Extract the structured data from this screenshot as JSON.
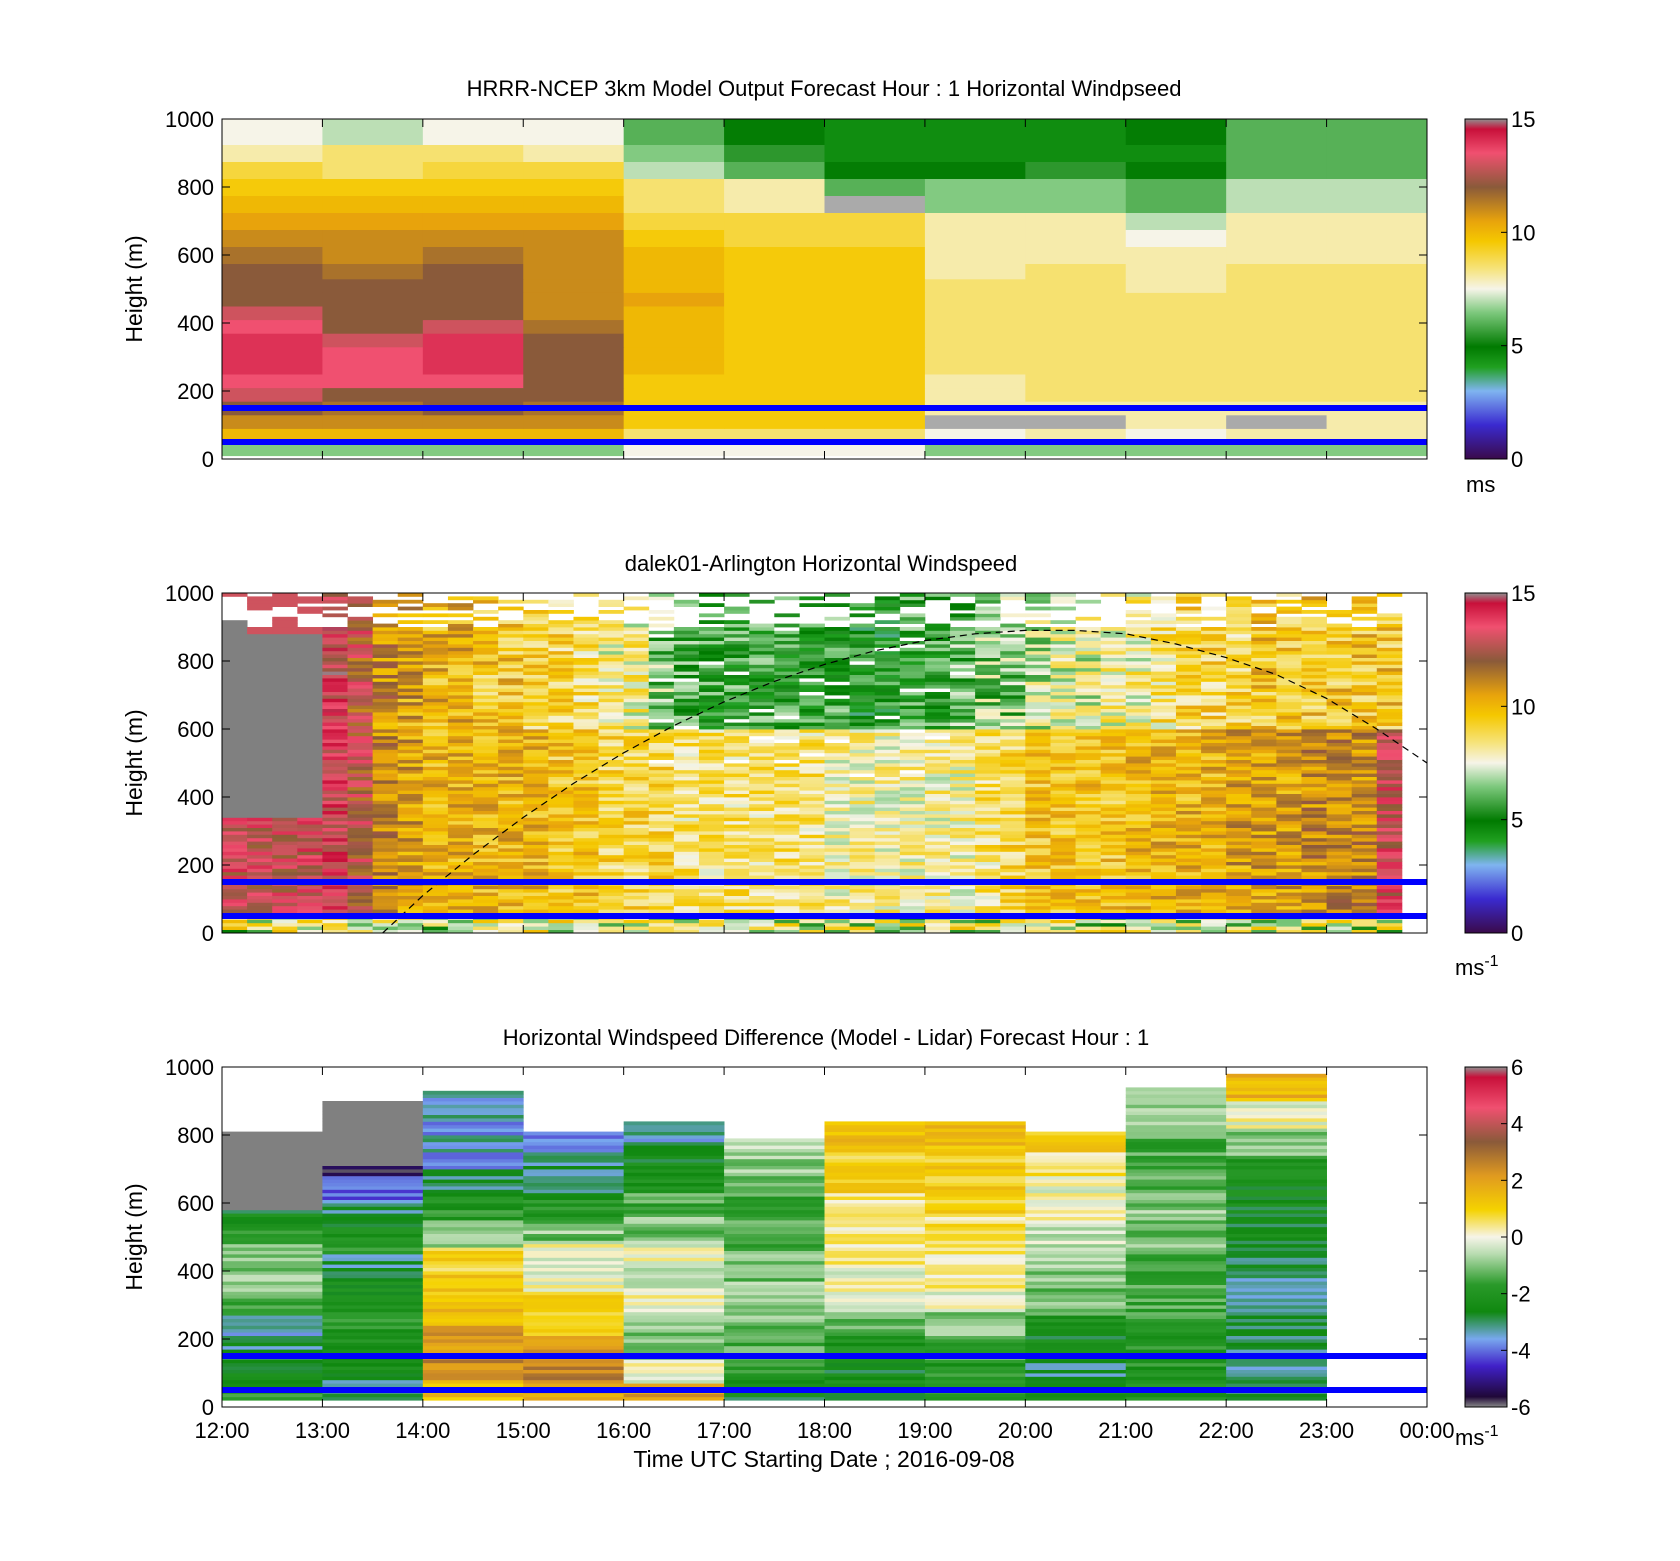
{
  "figure": {
    "xlabel": "Time UTC  Starting Date ; 2016-09-08",
    "x_ticks": [
      "12:00",
      "13:00",
      "14:00",
      "15:00",
      "16:00",
      "17:00",
      "18:00",
      "19:00",
      "20:00",
      "21:00",
      "22:00",
      "23:00",
      "00:00"
    ],
    "y_ticks": [
      "0",
      "200",
      "400",
      "600",
      "800",
      "1000"
    ],
    "ylabel": "Height (m)",
    "reference_heights_m": [
      50,
      150
    ],
    "reference_line_color": "#0000ff"
  },
  "chart_data": [
    {
      "type": "heatmap",
      "title": "HRRR-NCEP 3km Model Output   Forecast Hour : 1 Horizontal Windpseed",
      "ylabel": "Height (m)",
      "xlim": [
        12,
        24
      ],
      "ylim": [
        0,
        1000
      ],
      "colorbar": {
        "range": [
          0,
          15
        ],
        "ticks": [
          "15",
          "10",
          "5",
          "0"
        ],
        "unit": "ms"
      },
      "time_hours": [
        12,
        13,
        14,
        15,
        16,
        17,
        18,
        19,
        20,
        21,
        22,
        23
      ],
      "heights_m": [
        30,
        70,
        110,
        150,
        190,
        230,
        270,
        310,
        350,
        390,
        430,
        470,
        510,
        550,
        600,
        650,
        700,
        750,
        800,
        850,
        900,
        950,
        1000
      ],
      "windspeed_ms": [
        [
          6.5,
          6.5,
          6.5,
          6.5,
          7.5,
          7.5,
          7.5,
          6.5,
          6.5,
          6.5,
          6.5,
          6.5
        ],
        [
          10,
          10,
          10,
          10,
          8.5,
          8.5,
          8.5,
          7.5,
          8,
          7.5,
          8,
          8
        ],
        [
          11,
          11,
          11,
          11,
          9.5,
          9.5,
          9.5,
          0,
          0,
          8,
          0,
          8
        ],
        [
          12,
          11.5,
          12,
          11.5,
          9.5,
          9.5,
          9.5,
          8,
          8,
          8,
          8,
          8
        ],
        [
          13,
          12,
          12,
          12,
          9.5,
          9.5,
          9.5,
          8,
          8.5,
          8.5,
          8.5,
          8.5
        ],
        [
          13.5,
          13.5,
          13.5,
          12,
          9.5,
          9.5,
          9.5,
          8,
          8.5,
          8.5,
          8.5,
          8.5
        ],
        [
          14,
          13.5,
          14,
          12,
          10,
          9.5,
          9.5,
          8.5,
          8.5,
          8.5,
          8.5,
          8.5
        ],
        [
          14,
          13.5,
          14,
          12,
          10,
          9.5,
          9.5,
          8.5,
          8.5,
          8.5,
          8.5,
          8.5
        ],
        [
          14,
          13,
          14,
          12,
          10,
          9.5,
          9.5,
          8.5,
          8.5,
          8.5,
          8.5,
          8.5
        ],
        [
          13.5,
          12,
          13,
          11.5,
          10,
          9.5,
          9.5,
          8.5,
          8.5,
          8.5,
          8.5,
          8.5
        ],
        [
          13,
          12,
          12,
          11,
          10,
          9.5,
          9.5,
          8.5,
          8.5,
          8.5,
          8.5,
          8.5
        ],
        [
          12,
          12,
          12,
          11,
          10.5,
          9.5,
          9.5,
          8.5,
          8.5,
          8.5,
          8.5,
          8.5
        ],
        [
          12,
          12,
          12,
          11,
          10,
          9.5,
          9.5,
          8.5,
          8.5,
          8,
          8.5,
          8.5
        ],
        [
          12,
          11.5,
          12,
          11,
          10,
          9.5,
          9.5,
          8,
          8.5,
          8,
          8.5,
          8.5
        ],
        [
          11.5,
          11,
          11.5,
          11,
          10,
          9.5,
          9.5,
          8,
          8,
          8,
          8,
          8
        ],
        [
          11,
          11,
          11,
          11,
          9.5,
          9,
          9,
          8,
          8,
          7.5,
          8,
          8
        ],
        [
          10.5,
          10.5,
          10.5,
          10.5,
          9,
          9,
          9,
          8,
          8,
          7,
          8,
          8
        ],
        [
          10,
          10,
          10,
          10,
          8.5,
          8,
          0,
          6.5,
          6.5,
          6,
          7,
          7
        ],
        [
          9.5,
          9.5,
          9.5,
          9.5,
          8.5,
          8,
          6,
          6.5,
          6.5,
          6,
          7,
          7
        ],
        [
          9,
          8.5,
          9,
          9,
          7,
          6,
          5,
          5,
          5.5,
          5,
          6,
          6
        ],
        [
          8,
          8.5,
          8.5,
          8,
          6.5,
          5.5,
          4.5,
          4.5,
          4.5,
          4.5,
          6,
          6
        ],
        [
          7.5,
          7,
          7.5,
          7.5,
          6,
          5,
          4.5,
          4.5,
          4.5,
          5,
          6,
          6
        ],
        [
          7.5,
          7,
          7.5,
          7.5,
          6,
          5,
          4.5,
          4.5,
          4.5,
          5,
          6,
          6
        ]
      ]
    },
    {
      "type": "heatmap",
      "title": "dalek01-Arlington  Horizontal Windspeed",
      "ylabel": "Height (m)",
      "xlim": [
        12,
        24
      ],
      "ylim": [
        0,
        1000
      ],
      "colorbar": {
        "range": [
          0,
          15
        ],
        "ticks": [
          "15",
          "10",
          "5",
          "0"
        ],
        "unit": "ms",
        "unit_exponent": "-1"
      },
      "columns_per_hour": 4,
      "column_count": 47,
      "gap_height_m": {
        "start": 900,
        "end": 1000
      },
      "profile": {
        "speed_by_column_ms": [
          13,
          13,
          13,
          13,
          13.5,
          12.5,
          11,
          10.5,
          10,
          10,
          10,
          10,
          10,
          9.5,
          9.5,
          9,
          9,
          9,
          8.5,
          8.5,
          8.5,
          8.5,
          8.5,
          8.5,
          8,
          8,
          8,
          8,
          8,
          8,
          8.5,
          9,
          9.5,
          9.5,
          9.5,
          9.5,
          10,
          10,
          10,
          10,
          10.5,
          10.5,
          10.5,
          11,
          11,
          11,
          13
        ],
        "upper_speed_by_column_ms": [
          0,
          0,
          0,
          0,
          13.5,
          12.5,
          11,
          10.5,
          10,
          10,
          9.5,
          9.5,
          9,
          9,
          8.5,
          8,
          8,
          6.5,
          6,
          5.5,
          5.5,
          5.5,
          5.5,
          5.5,
          5.5,
          5,
          5,
          5.5,
          5.5,
          6,
          6.5,
          6.5,
          7,
          7.5,
          7.5,
          8,
          8,
          8.5,
          9,
          9,
          9,
          9.5,
          9.5,
          9.5,
          9.5,
          9.5,
          9.5
        ]
      },
      "boundary_layer_curve": {
        "style": "dashed",
        "time_hours": [
          13.6,
          14,
          14.5,
          15,
          15.5,
          16,
          16.5,
          17,
          17.5,
          18,
          18.5,
          19,
          19.5,
          20,
          20.5,
          21,
          21.5,
          22,
          22.5,
          23,
          23.5,
          24
        ],
        "height_m": [
          0,
          110,
          230,
          340,
          440,
          530,
          610,
          680,
          740,
          790,
          830,
          860,
          880,
          890,
          890,
          880,
          850,
          810,
          760,
          690,
          600,
          500
        ]
      }
    },
    {
      "type": "heatmap",
      "title": "Horizontal Windspeed Difference (Model - Lidar) Forecast Hour : 1",
      "ylabel": "Height (m)",
      "xlim": [
        12,
        24
      ],
      "ylim": [
        0,
        1000
      ],
      "colorbar": {
        "range": [
          -6,
          6
        ],
        "ticks": [
          "6",
          "4",
          "2",
          "0",
          "-2",
          "-4",
          "-6"
        ],
        "unit": "ms",
        "unit_exponent": "-1"
      },
      "time_hours": [
        12,
        13,
        14,
        15,
        16,
        17,
        18,
        19,
        20,
        21,
        22,
        23
      ],
      "column_top_m": [
        810,
        900,
        930,
        810,
        840,
        790,
        840,
        840,
        810,
        940,
        980,
        null
      ],
      "grey_above_m": [
        580,
        710,
        null,
        null,
        null,
        null,
        null,
        null,
        null,
        null,
        null,
        null
      ],
      "difference_by_column_ms": [
        [
          -2,
          -2.5,
          -3,
          -3.5,
          -1.5,
          -1,
          -1,
          -2,
          -2.5,
          -3.5,
          -4,
          -5
        ],
        [
          -3,
          -2.5,
          -2,
          -2,
          -2.5,
          -3,
          -2,
          -3,
          -4,
          -5.5,
          -6,
          -6
        ],
        [
          1.5,
          2.5,
          2,
          1.5,
          1,
          1,
          -1,
          -2,
          -3,
          -3.5,
          -3.5,
          -3.5
        ],
        [
          2,
          2.5,
          2,
          1,
          1,
          0,
          0,
          -1,
          -2,
          -3,
          -3,
          -4
        ],
        [
          2,
          0,
          -1,
          -1,
          0,
          -0.5,
          0,
          -1,
          -1.5,
          -2,
          -2.5,
          -3.5
        ],
        [
          -2.5,
          -2,
          -1.5,
          -1,
          -1,
          -1,
          -1,
          -1.5,
          -1.5,
          -1.5,
          -1,
          -0.5
        ],
        [
          -2.5,
          -2.5,
          -2,
          -1,
          0,
          0,
          0.5,
          0.5,
          0.5,
          1,
          1,
          1.5
        ],
        [
          -2,
          -2,
          -1.5,
          -1,
          0,
          0.5,
          0.5,
          0.5,
          1,
          1,
          1,
          1.5
        ],
        [
          -2.5,
          -3,
          -2.5,
          -2,
          -1,
          -1,
          -0.5,
          -0.5,
          0,
          0,
          0.5,
          1
        ],
        [
          -2,
          -2,
          -2,
          -1.5,
          -1.5,
          -1.5,
          -1,
          -1,
          -1.5,
          -1.5,
          -1,
          -1
        ],
        [
          -3,
          -3,
          -3,
          -3,
          -3,
          -3,
          -2.5,
          -2.5,
          -2,
          -1,
          0,
          1.5
        ]
      ]
    }
  ]
}
